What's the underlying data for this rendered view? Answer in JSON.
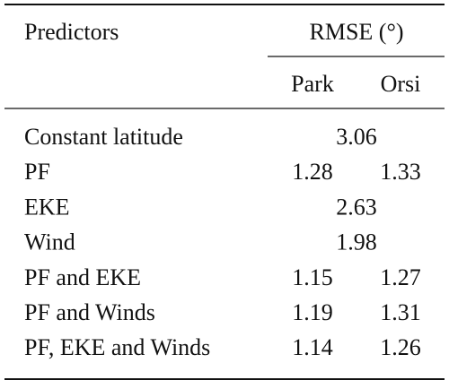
{
  "table": {
    "header": {
      "predictors": "Predictors",
      "rmse": "RMSE (°)",
      "park": "Park",
      "orsi": "Orsi"
    },
    "rows": [
      [
        "Constant latitude",
        "3.06"
      ],
      [
        "PF",
        "1.28",
        "1.33"
      ],
      [
        "EKE",
        "2.63"
      ],
      [
        "Wind",
        "1.98"
      ],
      [
        "PF and EKE",
        "1.15",
        "1.27"
      ],
      [
        "PF and Winds",
        "1.19",
        "1.31"
      ],
      [
        "PF, EKE and Winds",
        "1.14",
        "1.26"
      ]
    ]
  }
}
